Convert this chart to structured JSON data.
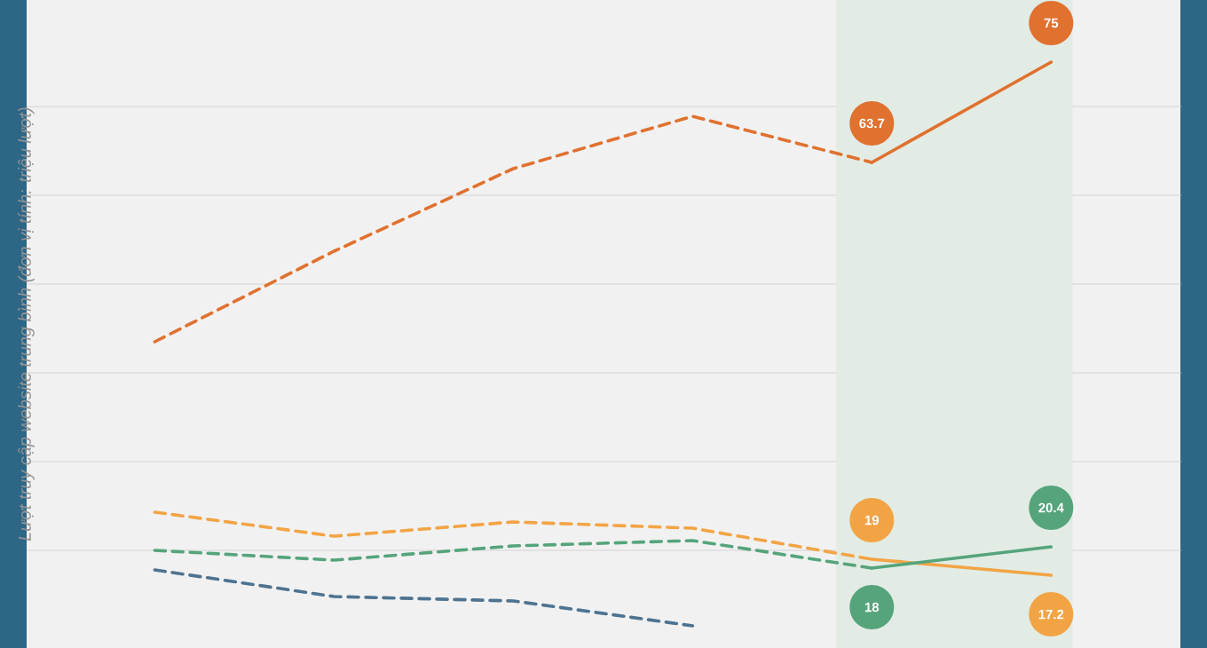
{
  "chart_data": {
    "type": "line",
    "ylabel": "Lượt truy cập website trung bình (đơn vị tính: triệu lượt)",
    "categories": [
      null,
      null,
      null,
      null,
      null,
      null
    ],
    "series": [
      {
        "color": "#e0712f",
        "line_style": "dashed",
        "values": [
          43.5,
          53.7,
          63.0,
          68.9,
          63.7,
          null
        ]
      },
      {
        "color": "#e0712f",
        "line_style": "solid",
        "values": [
          null,
          null,
          null,
          null,
          63.7,
          75
        ],
        "value_labels": [
          null,
          null,
          null,
          null,
          "63.7",
          "75"
        ]
      },
      {
        "color": "#f2a445",
        "line_style": "dashed",
        "values": [
          24.3,
          21.6,
          23.2,
          22.5,
          19,
          null
        ]
      },
      {
        "color": "#f2a445",
        "line_style": "solid",
        "values": [
          null,
          null,
          null,
          null,
          19,
          17.2
        ],
        "value_labels": [
          null,
          null,
          null,
          null,
          "19",
          "17.2"
        ]
      },
      {
        "color": "#55a47c",
        "line_style": "dashed",
        "values": [
          20.0,
          18.9,
          20.5,
          21.1,
          18,
          null
        ]
      },
      {
        "color": "#55a47c",
        "line_style": "solid",
        "values": [
          null,
          null,
          null,
          null,
          18,
          20.4
        ],
        "value_labels": [
          null,
          null,
          null,
          null,
          "18",
          "20.4"
        ]
      },
      {
        "color": "#4d7391",
        "line_style": "dashed",
        "values": [
          17.8,
          14.8,
          14.3,
          11.5,
          null,
          null
        ]
      }
    ],
    "ylim": [
      9,
      82
    ],
    "yticks": [
      {
        "value": 20,
        "label": null
      },
      {
        "value": 30,
        "label": null
      },
      {
        "value": 40,
        "label": null
      },
      {
        "value": 50,
        "label": null
      },
      {
        "value": 60,
        "label": null
      },
      {
        "value": 70,
        "label": null
      }
    ],
    "grid": "y",
    "legend": false,
    "marker": "none"
  }
}
